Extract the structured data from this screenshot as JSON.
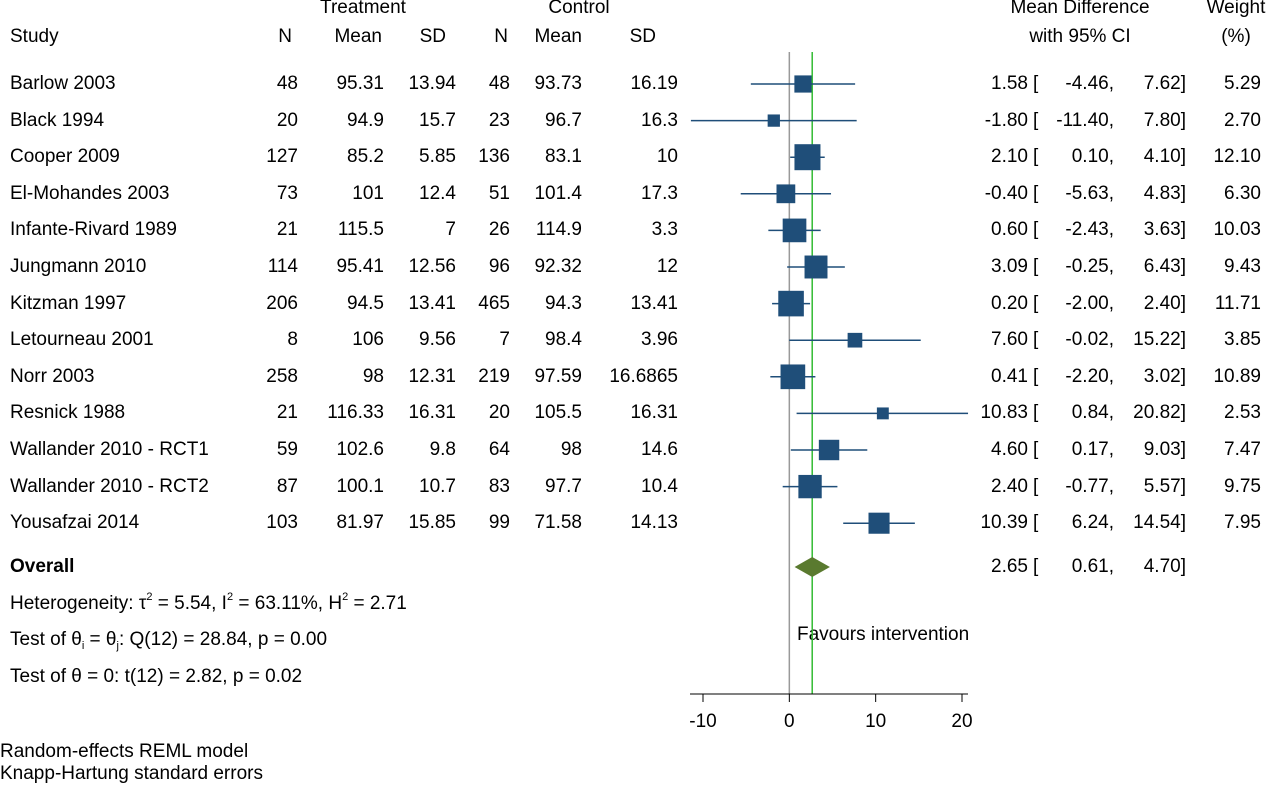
{
  "header": {
    "group_treatment": "Treatment",
    "group_control": "Control",
    "study": "Study",
    "n": "N",
    "mean": "Mean",
    "sd": "SD",
    "md_line1": "Mean Difference",
    "md_line2": "with 95% CI",
    "weight_line1": "Weight",
    "weight_line2": "(%)"
  },
  "studies": [
    {
      "study": "Barlow 2003",
      "t_n": "48",
      "t_mean": "95.31",
      "t_sd": "13.94",
      "c_n": "48",
      "c_mean": "93.73",
      "c_sd": "16.19",
      "md": "1.58",
      "lo": "-4.46,",
      "hi": "7.62]",
      "weight": "5.29"
    },
    {
      "study": "Black 1994",
      "t_n": "20",
      "t_mean": "94.9",
      "t_sd": "15.7",
      "c_n": "23",
      "c_mean": "96.7",
      "c_sd": "16.3",
      "md": "-1.80",
      "lo": "-11.40,",
      "hi": "7.80]",
      "weight": "2.70"
    },
    {
      "study": "Cooper 2009",
      "t_n": "127",
      "t_mean": "85.2",
      "t_sd": "5.85",
      "c_n": "136",
      "c_mean": "83.1",
      "c_sd": "10",
      "md": "2.10",
      "lo": "0.10,",
      "hi": "4.10]",
      "weight": "12.10"
    },
    {
      "study": "El-Mohandes 2003",
      "t_n": "73",
      "t_mean": "101",
      "t_sd": "12.4",
      "c_n": "51",
      "c_mean": "101.4",
      "c_sd": "17.3",
      "md": "-0.40",
      "lo": "-5.63,",
      "hi": "4.83]",
      "weight": "6.30"
    },
    {
      "study": "Infante-Rivard 1989",
      "t_n": "21",
      "t_mean": "115.5",
      "t_sd": "7",
      "c_n": "26",
      "c_mean": "114.9",
      "c_sd": "3.3",
      "md": "0.60",
      "lo": "-2.43,",
      "hi": "3.63]",
      "weight": "10.03"
    },
    {
      "study": "Jungmann 2010",
      "t_n": "114",
      "t_mean": "95.41",
      "t_sd": "12.56",
      "c_n": "96",
      "c_mean": "92.32",
      "c_sd": "12",
      "md": "3.09",
      "lo": "-0.25,",
      "hi": "6.43]",
      "weight": "9.43"
    },
    {
      "study": "Kitzman 1997",
      "t_n": "206",
      "t_mean": "94.5",
      "t_sd": "13.41",
      "c_n": "465",
      "c_mean": "94.3",
      "c_sd": "13.41",
      "md": "0.20",
      "lo": "-2.00,",
      "hi": "2.40]",
      "weight": "11.71"
    },
    {
      "study": "Letourneau 2001",
      "t_n": "8",
      "t_mean": "106",
      "t_sd": "9.56",
      "c_n": "7",
      "c_mean": "98.4",
      "c_sd": "3.96",
      "md": "7.60",
      "lo": "-0.02,",
      "hi": "15.22]",
      "weight": "3.85"
    },
    {
      "study": "Norr 2003",
      "t_n": "258",
      "t_mean": "98",
      "t_sd": "12.31",
      "c_n": "219",
      "c_mean": "97.59",
      "c_sd": "16.6865",
      "md": "0.41",
      "lo": "-2.20,",
      "hi": "3.02]",
      "weight": "10.89"
    },
    {
      "study": "Resnick 1988",
      "t_n": "21",
      "t_mean": "116.33",
      "t_sd": "16.31",
      "c_n": "20",
      "c_mean": "105.5",
      "c_sd": "16.31",
      "md": "10.83",
      "lo": "0.84,",
      "hi": "20.82]",
      "weight": "2.53"
    },
    {
      "study": "Wallander 2010 - RCT1",
      "t_n": "59",
      "t_mean": "102.6",
      "t_sd": "9.8",
      "c_n": "64",
      "c_mean": "98",
      "c_sd": "14.6",
      "md": "4.60",
      "lo": "0.17,",
      "hi": "9.03]",
      "weight": "7.47"
    },
    {
      "study": "Wallander 2010 - RCT2",
      "t_n": "87",
      "t_mean": "100.1",
      "t_sd": "10.7",
      "c_n": "83",
      "c_mean": "97.7",
      "c_sd": "10.4",
      "md": "2.40",
      "lo": "-0.77,",
      "hi": "5.57]",
      "weight": "9.75"
    },
    {
      "study": "Yousafzai 2014",
      "t_n": "103",
      "t_mean": "81.97",
      "t_sd": "15.85",
      "c_n": "99",
      "c_mean": "71.58",
      "c_sd": "14.13",
      "md": "10.39",
      "lo": "6.24,",
      "hi": "14.54]",
      "weight": "7.95"
    }
  ],
  "overall": {
    "label": "Overall",
    "md": "2.65",
    "lo": "0.61,",
    "hi": "4.70]"
  },
  "bracket": "[",
  "stats": {
    "het_prefix": "Heterogeneity: τ",
    "het_sq": "2",
    "het_mid": " = 5.54, I",
    "het_i2": "2",
    "het_mid2": " = 63.11%, H",
    "het_h2": "2",
    "het_end": " = 2.71",
    "q_prefix": "Test of θ",
    "q_i": "i",
    "q_eq": " = θ",
    "q_j": "j",
    "q_end": ": Q(12) = 28.84, p = 0.00",
    "t_test": "Test of θ = 0: t(12) = 2.82, p = 0.02"
  },
  "favours": "Favours intervention",
  "footnote_1": "Random-effects REML model",
  "footnote_2": "Knapp-Hartung standard errors",
  "colors": {
    "marker": "#1f4e79",
    "diamond": "#5a7a2f",
    "overall_line": "#33bb33",
    "null_line": "#999999"
  },
  "chart_data": {
    "type": "scatter",
    "title": "",
    "xlabel": "",
    "ylabel": "",
    "xlim": [
      -10,
      20
    ],
    "xticks": [
      "-10",
      "0",
      "10",
      "20"
    ],
    "null_value": 0,
    "overall_estimate": 2.65,
    "categories": [
      "Barlow 2003",
      "Black 1994",
      "Cooper 2009",
      "El-Mohandes 2003",
      "Infante-Rivard 1989",
      "Jungmann 2010",
      "Kitzman 1997",
      "Letourneau 2001",
      "Norr 2003",
      "Resnick 1988",
      "Wallander 2010 - RCT1",
      "Wallander 2010 - RCT2",
      "Yousafzai 2014"
    ],
    "estimates": [
      1.58,
      -1.8,
      2.1,
      -0.4,
      0.6,
      3.09,
      0.2,
      7.6,
      0.41,
      10.83,
      4.6,
      2.4,
      10.39
    ],
    "ci_low": [
      -4.46,
      -11.4,
      0.1,
      -5.63,
      -2.43,
      -0.25,
      -2.0,
      -0.02,
      -2.2,
      0.84,
      0.17,
      -0.77,
      6.24
    ],
    "ci_high": [
      7.62,
      7.8,
      4.1,
      4.83,
      3.63,
      6.43,
      2.4,
      15.22,
      3.02,
      20.82,
      9.03,
      5.57,
      14.54
    ],
    "weights": [
      5.29,
      2.7,
      12.1,
      6.3,
      10.03,
      9.43,
      11.71,
      3.85,
      10.89,
      2.53,
      7.47,
      9.75,
      7.95
    ],
    "overall": {
      "estimate": 2.65,
      "ci_low": 0.61,
      "ci_high": 4.7
    }
  }
}
